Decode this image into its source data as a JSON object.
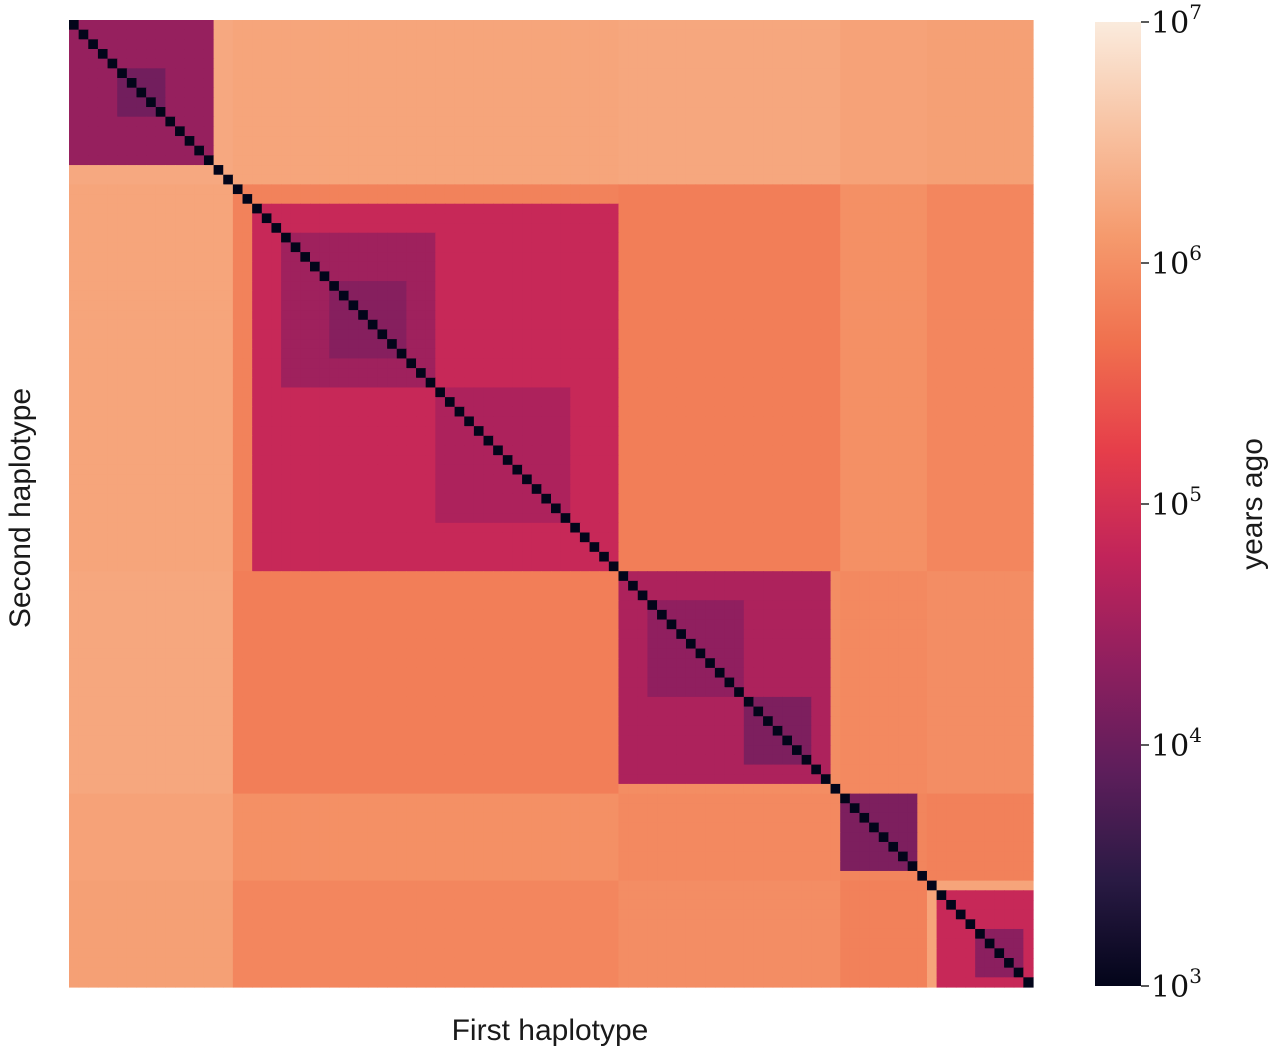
{
  "chart_data": {
    "type": "heatmap",
    "title": "",
    "xlabel": "First haplotype",
    "ylabel": "Second haplotype",
    "colorbar": {
      "label": "years ago",
      "scale": "log",
      "range": [
        1000,
        10000000
      ],
      "ticks": [
        {
          "base": "10",
          "exp": "7",
          "value": 10000000
        },
        {
          "base": "10",
          "exp": "6",
          "value": 1000000
        },
        {
          "base": "10",
          "exp": "5",
          "value": 100000
        },
        {
          "base": "10",
          "exp": "4",
          "value": 10000
        },
        {
          "base": "10",
          "exp": "3",
          "value": 1000
        }
      ],
      "colormap": [
        "#03051a",
        "#2a1a44",
        "#5d1e5b",
        "#8f1f5f",
        "#c1245a",
        "#e63e4a",
        "#f0704e",
        "#f59a6d",
        "#f8c2a2",
        "#faebdd"
      ]
    },
    "haplotype_count": 100,
    "diagonal_value": 1000,
    "clusters": [
      {
        "range": [
          0,
          15
        ],
        "value": 25000,
        "sub_blocks": [
          {
            "range": [
              5,
              10
            ],
            "value": 12000
          }
        ]
      },
      {
        "range": [
          19,
          57
        ],
        "value": 70000,
        "sub_blocks": [
          {
            "range": [
              22,
              38
            ],
            "value": 30000
          },
          {
            "range": [
              38,
              52
            ],
            "value": 40000
          },
          {
            "range": [
              27,
              35
            ],
            "value": 18000
          }
        ]
      },
      {
        "range": [
          57,
          79
        ],
        "value": 40000,
        "sub_blocks": [
          {
            "range": [
              60,
              70
            ],
            "value": 22000
          },
          {
            "range": [
              70,
              77
            ],
            "value": 15000
          }
        ]
      },
      {
        "range": [
          80,
          88
        ],
        "value": 15000
      },
      {
        "range": [
          90,
          100
        ],
        "value": 70000,
        "sub_blocks": [
          {
            "range": [
              94,
              99
            ],
            "value": 20000
          }
        ]
      }
    ],
    "inter_cluster_values": [
      [
        0,
        1700000,
        1800000,
        1600000,
        1500000
      ],
      [
        1700000,
        0,
        650000,
        1000000,
        800000
      ],
      [
        1800000,
        650000,
        0,
        850000,
        950000
      ],
      [
        1600000,
        1000000,
        850000,
        0,
        700000
      ],
      [
        1500000,
        800000,
        950000,
        700000,
        0
      ]
    ]
  }
}
